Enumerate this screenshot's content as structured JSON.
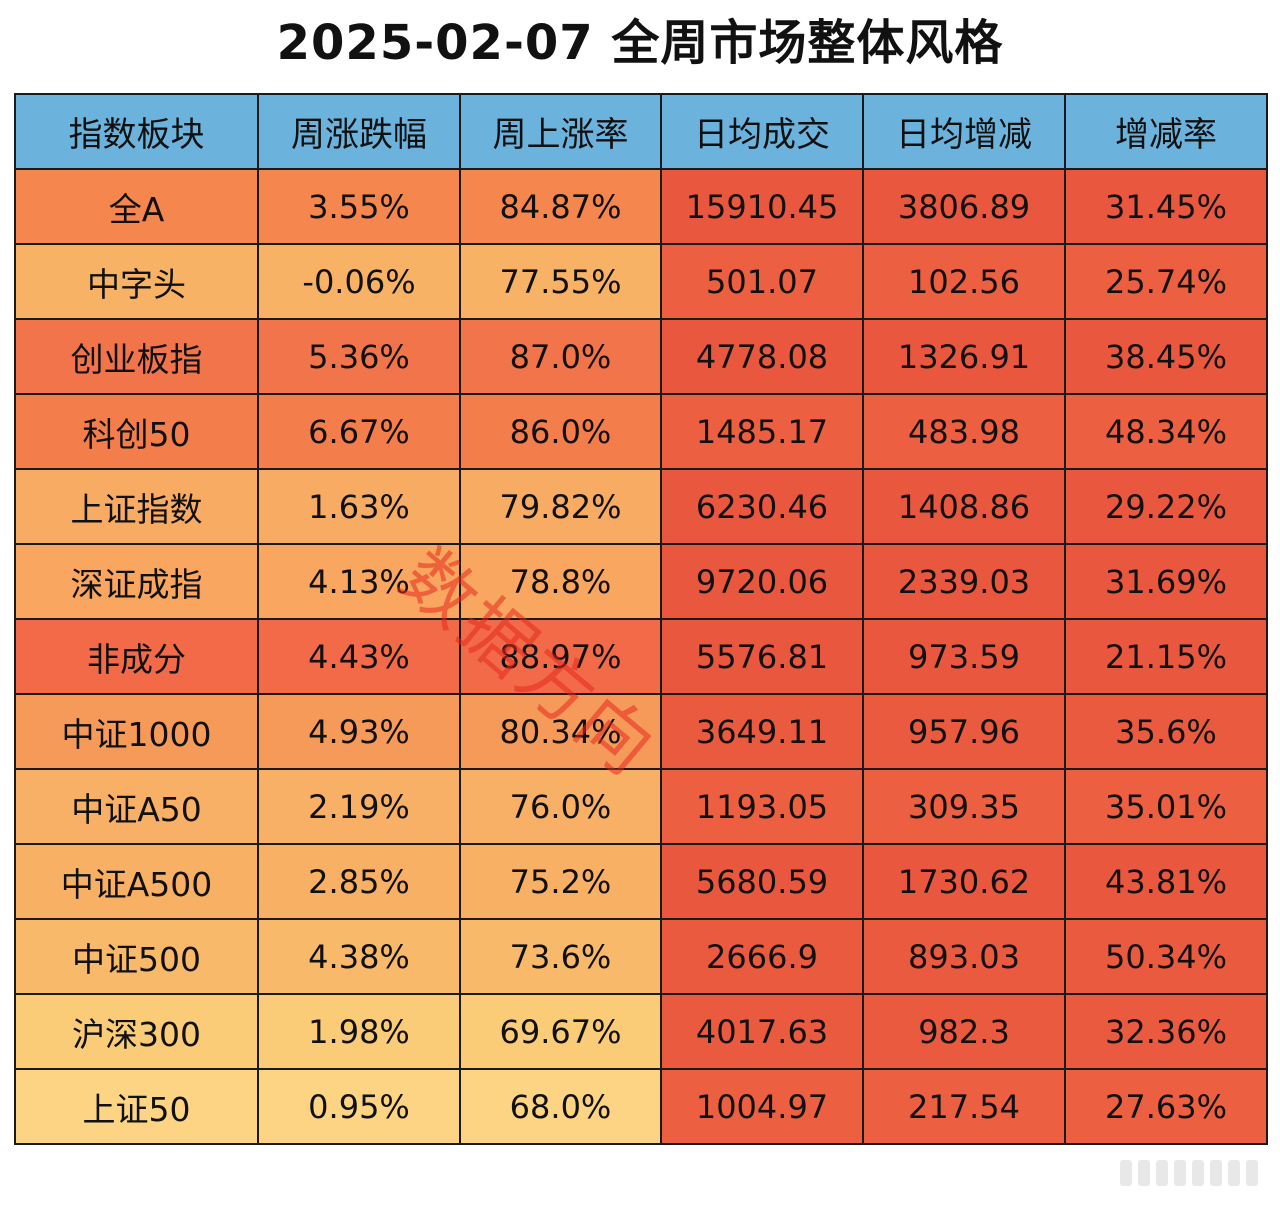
{
  "title": "2025-02-07 全周市场整体风格",
  "watermark": "数据方向",
  "chart_data": {
    "type": "table",
    "columns": [
      "指数板块",
      "周涨跌幅",
      "周上涨率",
      "日均成交",
      "日均增减",
      "增减率"
    ],
    "rows": [
      [
        "全A",
        "3.55%",
        "84.87%",
        "15910.45",
        "3806.89",
        "31.45%"
      ],
      [
        "中字头",
        "-0.06%",
        "77.55%",
        "501.07",
        "102.56",
        "25.74%"
      ],
      [
        "创业板指",
        "5.36%",
        "87.0%",
        "4778.08",
        "1326.91",
        "38.45%"
      ],
      [
        "科创50",
        "6.67%",
        "86.0%",
        "1485.17",
        "483.98",
        "48.34%"
      ],
      [
        "上证指数",
        "1.63%",
        "79.82%",
        "6230.46",
        "1408.86",
        "29.22%"
      ],
      [
        "深证成指",
        "4.13%",
        "78.8%",
        "9720.06",
        "2339.03",
        "31.69%"
      ],
      [
        "非成分",
        "4.43%",
        "88.97%",
        "5576.81",
        "973.59",
        "21.15%"
      ],
      [
        "中证1000",
        "4.93%",
        "80.34%",
        "3649.11",
        "957.96",
        "35.6%"
      ],
      [
        "中证A50",
        "2.19%",
        "76.0%",
        "1193.05",
        "309.35",
        "35.01%"
      ],
      [
        "中证A500",
        "2.85%",
        "75.2%",
        "5680.59",
        "1730.62",
        "43.81%"
      ],
      [
        "中证500",
        "4.38%",
        "73.6%",
        "2666.9",
        "893.03",
        "50.34%"
      ],
      [
        "沪深300",
        "1.98%",
        "69.67%",
        "4017.63",
        "982.3",
        "32.36%"
      ],
      [
        "上证50",
        "0.95%",
        "68.0%",
        "1004.97",
        "217.54",
        "27.63%"
      ]
    ],
    "row_colors": [
      "#f4864e",
      "#f8b265",
      "#f2744a",
      "#f47d4c",
      "#f8ab62",
      "#f8a660",
      "#f26a47",
      "#f69a5a",
      "#f8b066",
      "#f8b164",
      "#f9b96a",
      "#fbcc78",
      "#fcd484"
    ],
    "volume_colors": [
      "#e9573f",
      "#ec5f40",
      "#e9573f",
      "#ec5f40",
      "#e9573f",
      "#e9573f",
      "#e9573f",
      "#ea5a3f",
      "#ec5f40",
      "#e9573f",
      "#ea5a3f",
      "#ea5a3f",
      "#ec5f40"
    ],
    "header_color": "#6bb3dd"
  }
}
